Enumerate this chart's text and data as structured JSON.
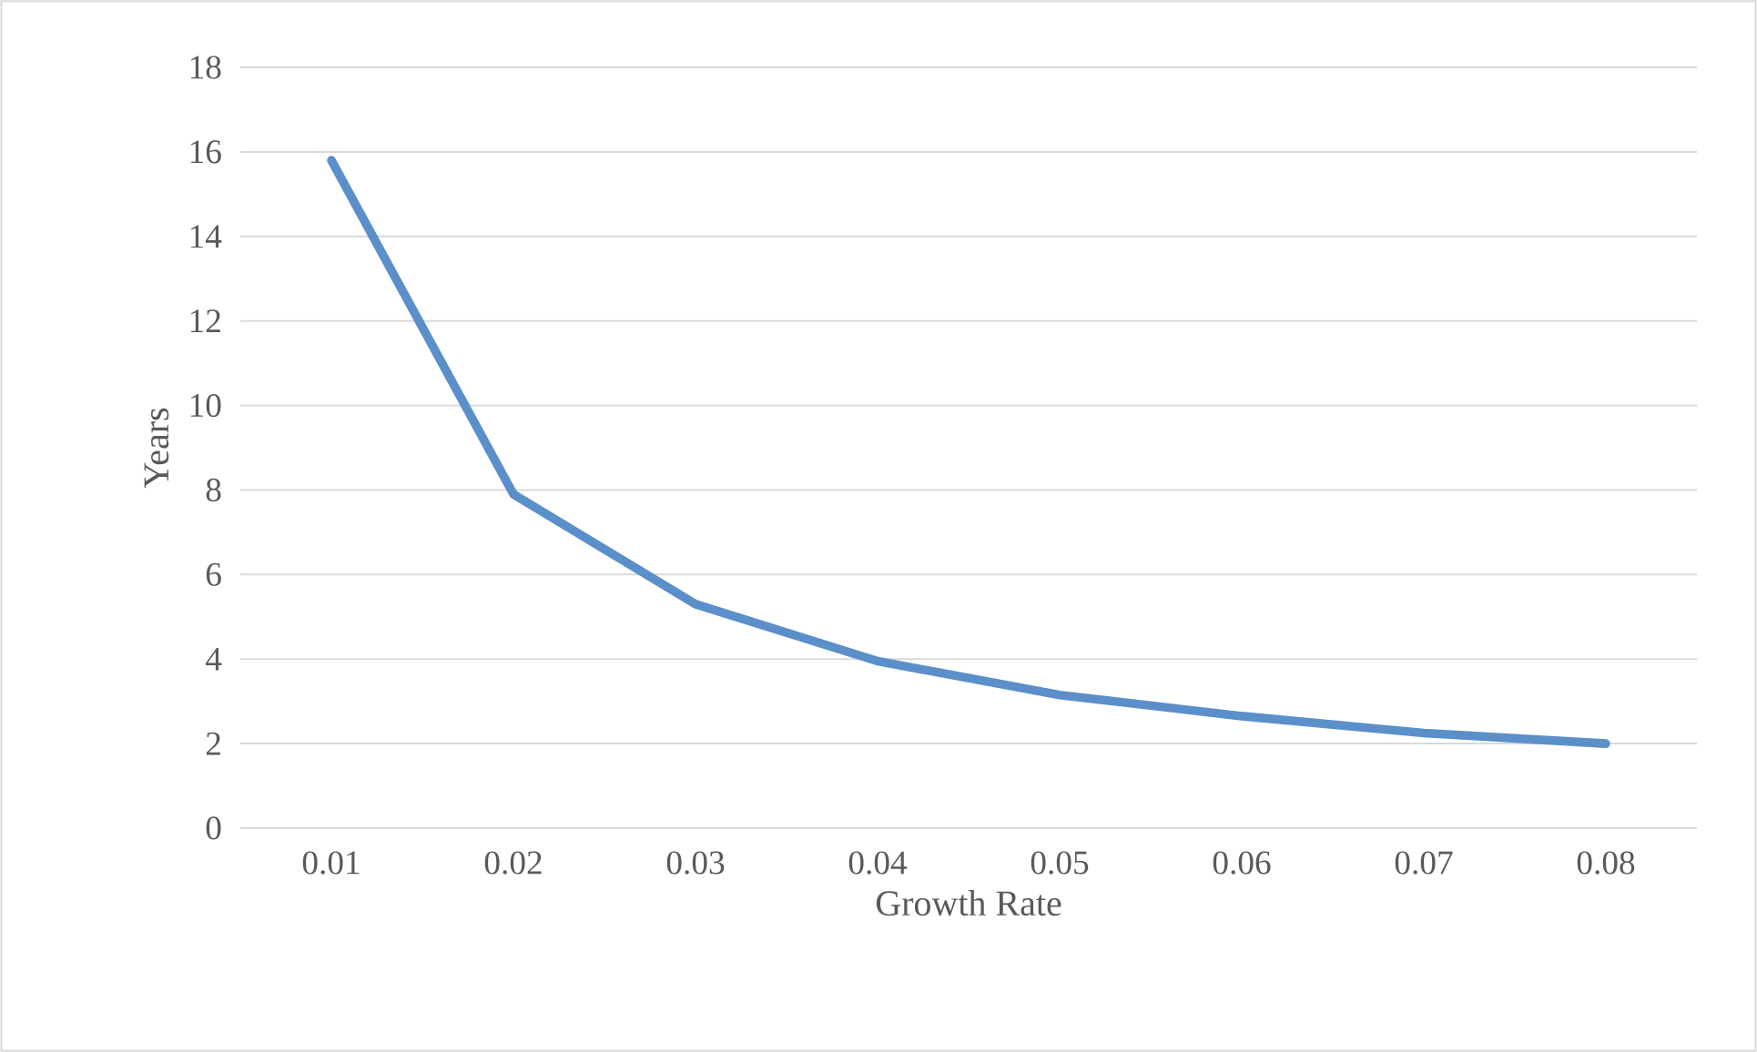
{
  "chart_data": {
    "type": "line",
    "xlabel": "Growth Rate",
    "ylabel": "Years",
    "categories": [
      "0.01",
      "0.02",
      "0.03",
      "0.04",
      "0.05",
      "0.06",
      "0.07",
      "0.08"
    ],
    "values": [
      15.8,
      7.9,
      5.3,
      3.95,
      3.15,
      2.65,
      2.25,
      2.0
    ],
    "color": "#5b8fc9",
    "ylim": [
      0,
      18
    ],
    "yticks": [
      0,
      2,
      4,
      6,
      8,
      10,
      12,
      14,
      16,
      18
    ],
    "grid": "y"
  }
}
